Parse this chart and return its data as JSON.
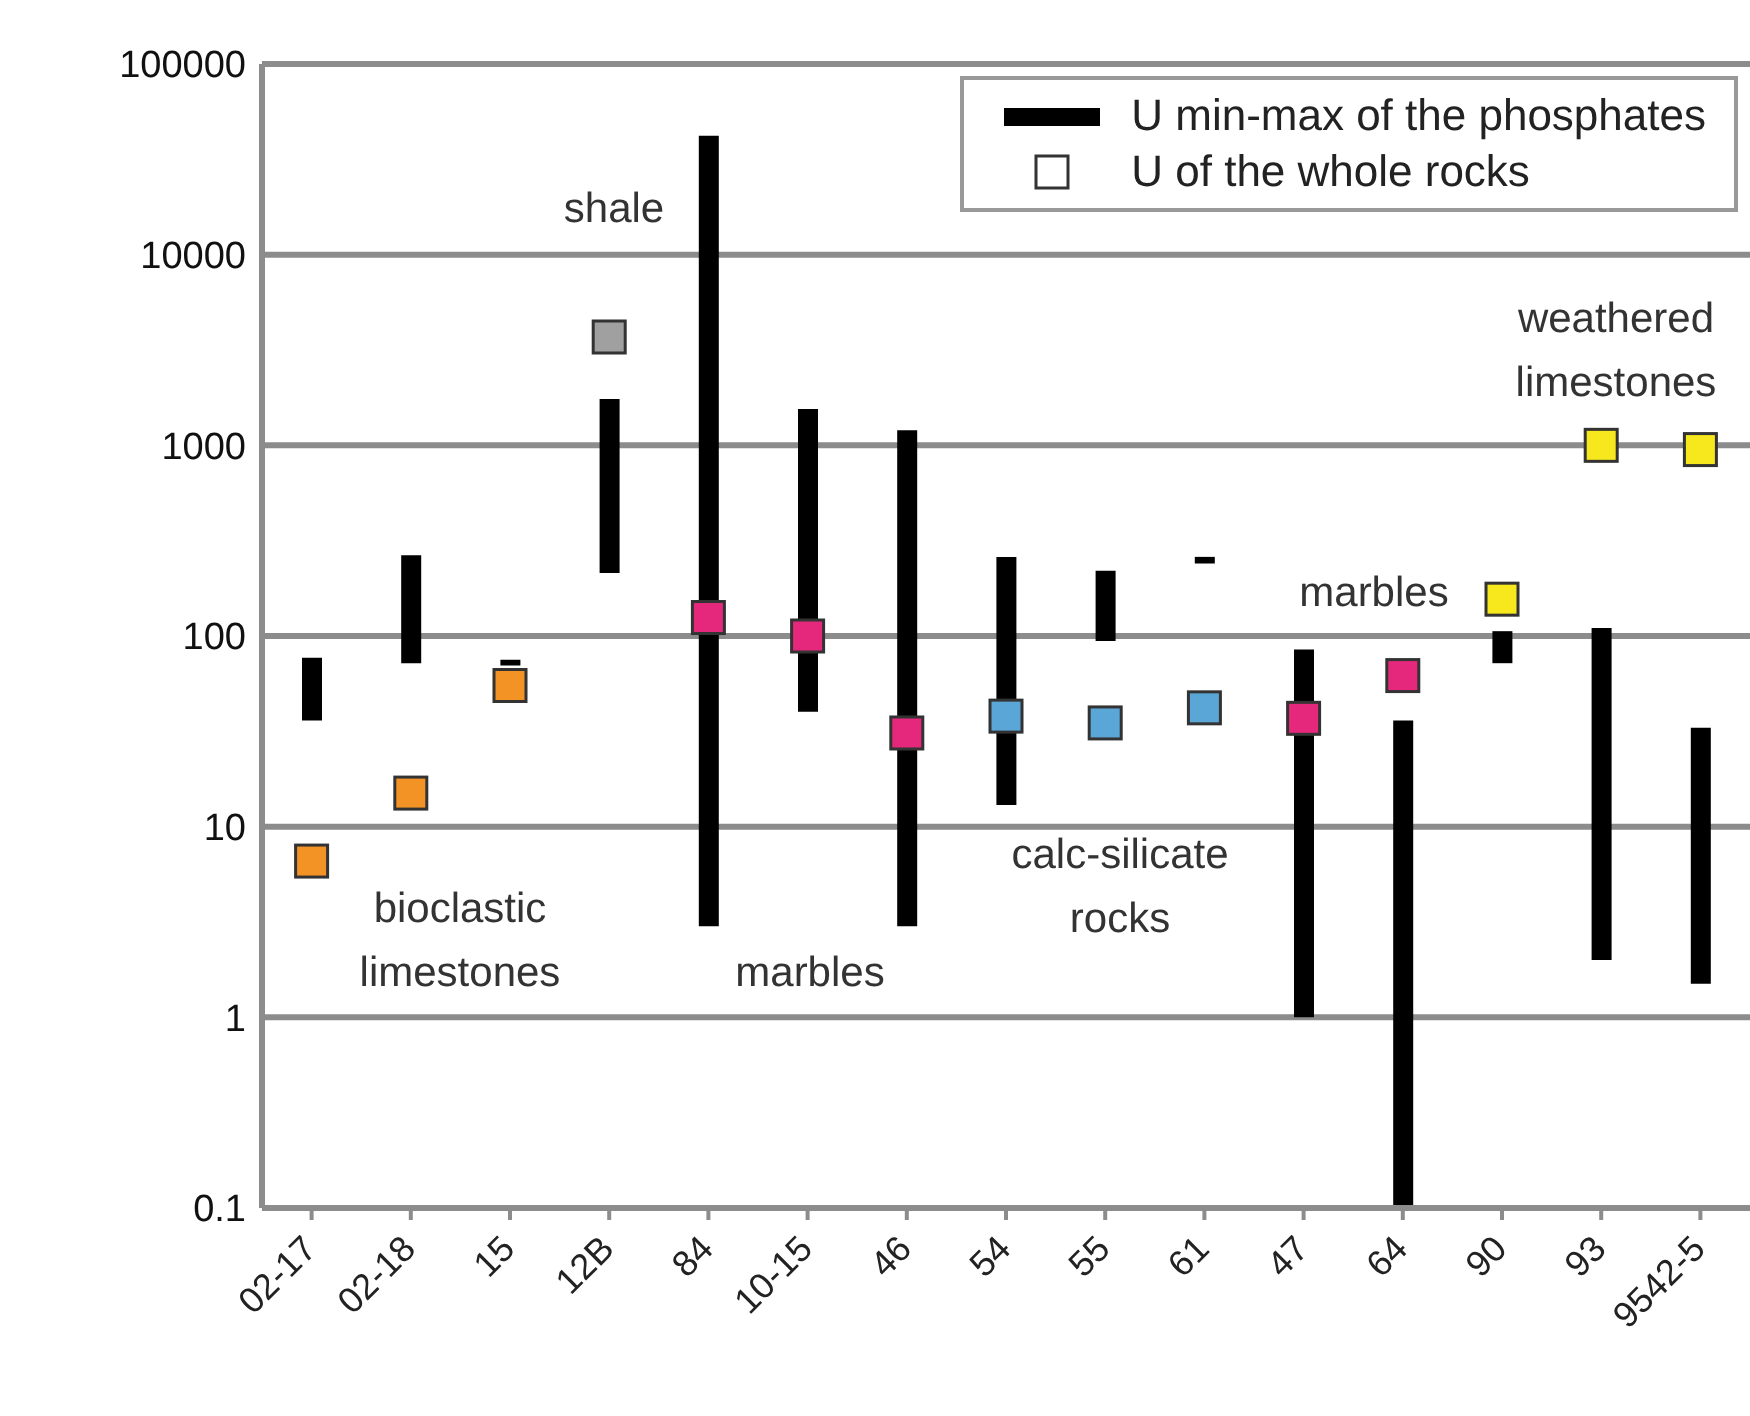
{
  "chart_data": {
    "type": "bar",
    "categories": [
      "02-17",
      "02-18",
      "15",
      "12B",
      "84",
      "10-15",
      "46",
      "54",
      "55",
      "61",
      "47",
      "64",
      "90",
      "93",
      "9542-5"
    ],
    "series": [
      {
        "name": "U min-max of the phosphates",
        "color": "#000000",
        "base": [
          36,
          72,
          70,
          214,
          3,
          40,
          3,
          13,
          94,
          240,
          1,
          0.1,
          72,
          2,
          1.5
        ],
        "values": [
          41,
          193,
          5,
          1536,
          41997,
          1510,
          1197,
          247,
          126,
          20,
          84,
          35.9,
          34,
          108,
          31.5
        ]
      },
      {
        "name": "U of the whole rocks",
        "type": "scatter",
        "color": "#ffffff",
        "marker": "square",
        "colors": [
          "#f39325",
          "#f39325",
          "#f39325",
          "#a0a0a0",
          "#e6287d",
          "#e6287d",
          "#e6287d",
          "#5aa6d6",
          "#5aa6d6",
          "#5aa6d6",
          "#e6287d",
          "#e6287d",
          "#f7e81d",
          "#f7e81d",
          "#f7e81d"
        ],
        "values": [
          6.6,
          15,
          55,
          3700,
          125,
          100,
          31,
          38,
          35,
          42,
          37,
          62,
          156,
          1000,
          950
        ]
      }
    ],
    "ylim": [
      0.1,
      100000
    ],
    "yticks": [
      0.1,
      1,
      10,
      100,
      1000,
      10000,
      100000
    ],
    "log": true,
    "grid": "y",
    "legend": "top right",
    "annotations": [
      "shale",
      "bioclastic limestones",
      "marbles",
      "calc-silicate rocks",
      "marbles",
      "weathered limestones"
    ]
  }
}
